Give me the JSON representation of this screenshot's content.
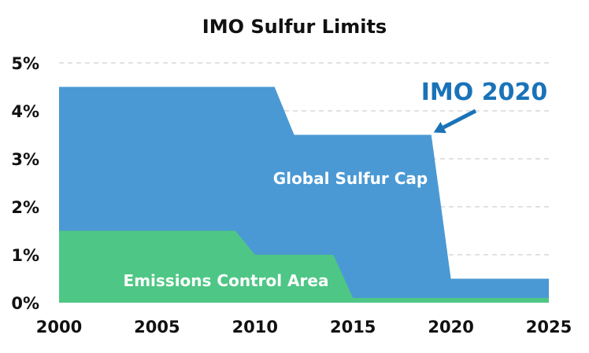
{
  "chart_data": {
    "type": "area",
    "title": "IMO Sulfur Limits",
    "xlabel": "",
    "ylabel": "",
    "xlim": [
      2000,
      2025
    ],
    "ylim": [
      0,
      5
    ],
    "x_ticks": [
      "2000",
      "2005",
      "2010",
      "2015",
      "2020",
      "2025"
    ],
    "y_ticks": [
      "0%",
      "1%",
      "2%",
      "3%",
      "4%",
      "5%"
    ],
    "grid": true,
    "series": [
      {
        "name": "Global Sulfur Cap",
        "color": "#4a99d4",
        "points": [
          [
            2000,
            4.5
          ],
          [
            2011,
            4.5
          ],
          [
            2012,
            3.5
          ],
          [
            2019,
            3.5
          ],
          [
            2020,
            0.5
          ],
          [
            2025,
            0.5
          ]
        ]
      },
      {
        "name": "Emissions Control Area",
        "color": "#4ec685",
        "points": [
          [
            2000,
            1.5
          ],
          [
            2009,
            1.5
          ],
          [
            2010,
            1.0
          ],
          [
            2014,
            1.0
          ],
          [
            2015,
            0.1
          ],
          [
            2025,
            0.1
          ]
        ]
      }
    ],
    "annotations": [
      {
        "text": "IMO 2020",
        "color": "#1a73b8",
        "arrow_to": [
          2019,
          3.5
        ]
      }
    ]
  }
}
